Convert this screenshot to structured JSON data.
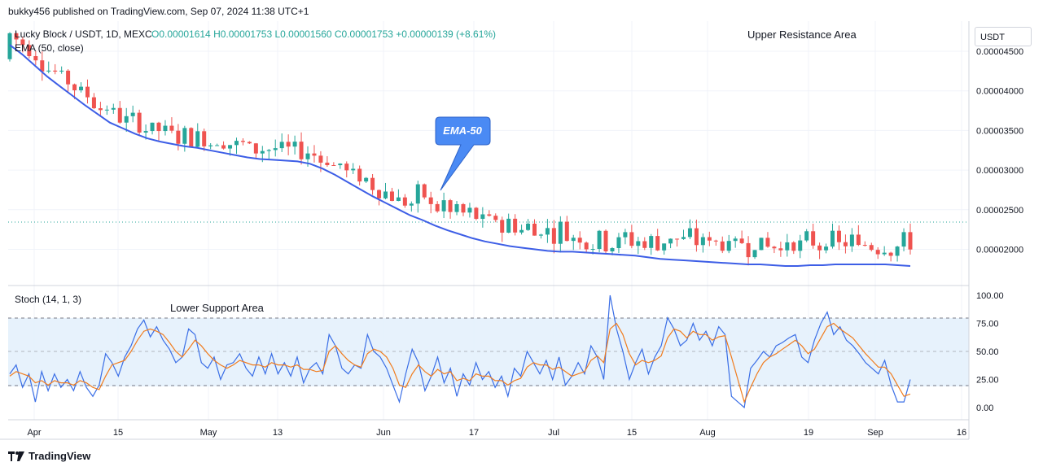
{
  "header": {
    "published_by": "bukky456 published on TradingView.com, Sep 07, 2024 11:38 UTC+1",
    "symbol": "Lucky Block / USDT, 1D, MEXC",
    "ohlc": "O0.00001614  H0.00001753  L0.00001560  C0.00001753  +0.00000139 (+8.61%)",
    "ema_label": "EMA (50, close)",
    "currency": "USDT"
  },
  "annotations": {
    "upper_resistance": "Upper Resistance Area",
    "lower_support": "Lower Support Area",
    "ema_callout": "EMA-50"
  },
  "stoch": {
    "label": "Stoch (14, 1, 3)",
    "ticks": [
      "100.00",
      "75.00",
      "50.00",
      "25.00",
      "0.00"
    ]
  },
  "price_axis": {
    "ticks": [
      "0.00004500",
      "0.00004000",
      "0.00003500",
      "0.00003000",
      "0.00002500",
      "0.00002000"
    ]
  },
  "time_axis": {
    "labels": [
      "Apr",
      "15",
      "May",
      "13",
      "Jun",
      "17",
      "Jul",
      "15",
      "Aug",
      "19",
      "Sep",
      "16"
    ]
  },
  "branding": {
    "name": "TradingView"
  },
  "colors": {
    "up": "#26a69a",
    "down": "#ef5350",
    "ema": "#3d5ee6",
    "stoch_k": "#3a6ee6",
    "stoch_d": "#f07c1e",
    "band": "#e3f0fb"
  },
  "chart_data": [
    {
      "type": "candlestick",
      "title": "Lucky Block / USDT, 1D, MEXC",
      "ylim": [
        1.6e-05,
        4.7e-05
      ],
      "series": [
        {
          "name": "EMA (50, close)",
          "values": [
            4.58e-05,
            4.46e-05,
            4.32e-05,
            4.18e-05,
            4.06e-05,
            3.94e-05,
            3.82e-05,
            3.71e-05,
            3.6e-05,
            3.53e-05,
            3.46e-05,
            3.4e-05,
            3.36e-05,
            3.33e-05,
            3.3e-05,
            3.28e-05,
            3.25e-05,
            3.22e-05,
            3.19e-05,
            3.16e-05,
            3.14e-05,
            3.13e-05,
            3.12e-05,
            3.11e-05,
            3.08e-05,
            3.02e-05,
            2.94e-05,
            2.85e-05,
            2.76e-05,
            2.67e-05,
            2.59e-05,
            2.51e-05,
            2.43e-05,
            2.37e-05,
            2.3e-05,
            2.24e-05,
            2.19e-05,
            2.14e-05,
            2.1e-05,
            2.07e-05,
            2.04e-05,
            2.02e-05,
            2e-05,
            1.98e-05,
            1.97e-05,
            1.97e-05,
            1.96e-05,
            1.95e-05,
            1.94e-05,
            1.93e-05,
            1.92e-05,
            1.9e-05,
            1.88e-05,
            1.87e-05,
            1.86e-05,
            1.85e-05,
            1.84e-05,
            1.83e-05,
            1.82e-05,
            1.81e-05,
            1.81e-05,
            1.8e-05,
            1.79e-05,
            1.79e-05,
            1.8e-05,
            1.8e-05,
            1.81e-05,
            1.81e-05,
            1.81e-05,
            1.81e-05,
            1.81e-05,
            1.8e-05,
            1.79e-05
          ]
        }
      ]
    },
    {
      "type": "line",
      "title": "Stoch (14, 1, 3)",
      "ylim": [
        0,
        100
      ],
      "series": [
        {
          "name": "K",
          "values": [
            30,
            38,
            18,
            30,
            5,
            32,
            15,
            30,
            18,
            25,
            15,
            32,
            18,
            10,
            20,
            48,
            40,
            28,
            45,
            55,
            70,
            78,
            63,
            72,
            60,
            52,
            40,
            45,
            70,
            65,
            40,
            35,
            45,
            25,
            38,
            40,
            48,
            35,
            28,
            45,
            30,
            48,
            30,
            40,
            28,
            45,
            22,
            35,
            40,
            30,
            65,
            55,
            35,
            30,
            38,
            35,
            65,
            50,
            45,
            35,
            20,
            5,
            30,
            52,
            40,
            15,
            28,
            45,
            22,
            35,
            10,
            30,
            20,
            40,
            25,
            32,
            18,
            28,
            10,
            35,
            28,
            50,
            40,
            30,
            42,
            25,
            45,
            20,
            28,
            40,
            30,
            55,
            45,
            25,
            100,
            70,
            50,
            25,
            40,
            52,
            30,
            45,
            55,
            80,
            70,
            55,
            60,
            75,
            60,
            68,
            55,
            72,
            65,
            10,
            5,
            0,
            35,
            42,
            50,
            45,
            55,
            58,
            62,
            65,
            45,
            40,
            60,
            75,
            85,
            65,
            72,
            60,
            55,
            48,
            40,
            35,
            30,
            42,
            20,
            5,
            5,
            25
          ]
        },
        {
          "name": "D",
          "values": [
            28,
            32,
            30,
            28,
            22,
            24,
            20,
            24,
            22,
            22,
            20,
            24,
            22,
            18,
            16,
            28,
            38,
            40,
            42,
            50,
            60,
            68,
            70,
            68,
            65,
            58,
            50,
            45,
            52,
            60,
            55,
            48,
            42,
            38,
            35,
            38,
            42,
            40,
            38,
            38,
            36,
            40,
            38,
            38,
            36,
            38,
            34,
            34,
            32,
            33,
            50,
            55,
            48,
            42,
            38,
            36,
            48,
            52,
            50,
            45,
            35,
            20,
            18,
            30,
            38,
            32,
            28,
            34,
            30,
            32,
            24,
            26,
            24,
            30,
            28,
            28,
            24,
            24,
            20,
            24,
            26,
            36,
            40,
            38,
            38,
            34,
            36,
            32,
            28,
            30,
            32,
            42,
            46,
            40,
            70,
            75,
            65,
            48,
            38,
            42,
            40,
            42,
            46,
            62,
            70,
            68,
            62,
            68,
            65,
            65,
            60,
            63,
            64,
            45,
            25,
            5,
            18,
            30,
            40,
            45,
            48,
            52,
            56,
            60,
            55,
            48,
            52,
            62,
            72,
            75,
            70,
            66,
            62,
            55,
            48,
            42,
            36,
            36,
            30,
            20,
            10,
            12
          ]
        }
      ]
    }
  ]
}
